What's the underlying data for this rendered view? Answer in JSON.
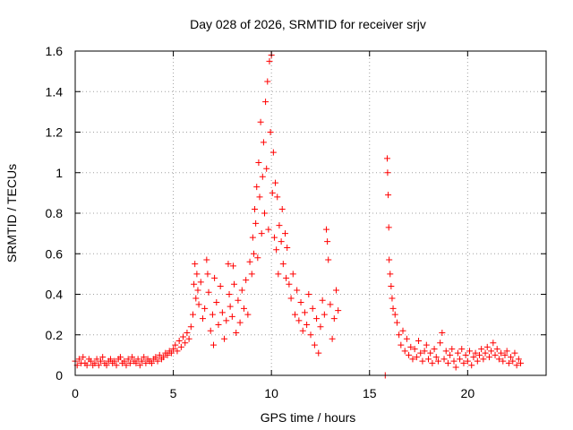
{
  "chart_data": {
    "type": "scatter",
    "title": "Day 028 of 2026, SRMTID for receiver srjv",
    "xlabel": "GPS time / hours",
    "ylabel": "SRMTID / TECUs",
    "xlim": [
      0,
      24
    ],
    "ylim": [
      0,
      1.6
    ],
    "xticks": [
      0,
      5,
      10,
      15,
      20
    ],
    "xtick_labels": [
      "0",
      "5",
      "10",
      "15",
      "20"
    ],
    "yticks": [
      0,
      0.2,
      0.4,
      0.6,
      0.8,
      1.0,
      1.2,
      1.4,
      1.6
    ],
    "ytick_labels": [
      "0",
      "0.2",
      "0.4",
      "0.6",
      "0.8",
      "1",
      "1.2",
      "1.4",
      "1.6"
    ],
    "grid": true,
    "marker": "plus",
    "color": "#ff0000",
    "series": [
      {
        "name": "srjv",
        "points": [
          [
            0.0,
            0.07
          ],
          [
            0.1,
            0.05
          ],
          [
            0.2,
            0.08
          ],
          [
            0.3,
            0.06
          ],
          [
            0.4,
            0.09
          ],
          [
            0.5,
            0.06
          ],
          [
            0.6,
            0.05
          ],
          [
            0.7,
            0.08
          ],
          [
            0.8,
            0.07
          ],
          [
            0.9,
            0.05
          ],
          [
            1.0,
            0.06
          ],
          [
            1.1,
            0.08
          ],
          [
            1.2,
            0.05
          ],
          [
            1.3,
            0.07
          ],
          [
            1.4,
            0.09
          ],
          [
            1.5,
            0.06
          ],
          [
            1.6,
            0.05
          ],
          [
            1.7,
            0.07
          ],
          [
            1.8,
            0.08
          ],
          [
            1.9,
            0.06
          ],
          [
            2.0,
            0.07
          ],
          [
            2.1,
            0.05
          ],
          [
            2.2,
            0.08
          ],
          [
            2.3,
            0.09
          ],
          [
            2.4,
            0.06
          ],
          [
            2.5,
            0.07
          ],
          [
            2.6,
            0.05
          ],
          [
            2.7,
            0.08
          ],
          [
            2.8,
            0.06
          ],
          [
            2.9,
            0.09
          ],
          [
            3.0,
            0.07
          ],
          [
            3.1,
            0.06
          ],
          [
            3.2,
            0.08
          ],
          [
            3.3,
            0.05
          ],
          [
            3.4,
            0.07
          ],
          [
            3.5,
            0.09
          ],
          [
            3.6,
            0.06
          ],
          [
            3.7,
            0.08
          ],
          [
            3.8,
            0.07
          ],
          [
            3.9,
            0.06
          ],
          [
            4.0,
            0.08
          ],
          [
            4.1,
            0.09
          ],
          [
            4.2,
            0.07
          ],
          [
            4.3,
            0.1
          ],
          [
            4.4,
            0.08
          ],
          [
            4.5,
            0.09
          ],
          [
            4.6,
            0.11
          ],
          [
            4.7,
            0.1
          ],
          [
            4.8,
            0.12
          ],
          [
            4.9,
            0.11
          ],
          [
            5.0,
            0.13
          ],
          [
            5.1,
            0.15
          ],
          [
            5.2,
            0.12
          ],
          [
            5.3,
            0.17
          ],
          [
            5.4,
            0.14
          ],
          [
            5.5,
            0.19
          ],
          [
            5.6,
            0.16
          ],
          [
            5.7,
            0.21
          ],
          [
            5.8,
            0.18
          ],
          [
            5.9,
            0.24
          ],
          [
            6.0,
            0.3
          ],
          [
            6.05,
            0.45
          ],
          [
            6.1,
            0.55
          ],
          [
            6.15,
            0.38
          ],
          [
            6.2,
            0.5
          ],
          [
            6.25,
            0.42
          ],
          [
            6.3,
            0.35
          ],
          [
            6.4,
            0.46
          ],
          [
            6.5,
            0.28
          ],
          [
            6.6,
            0.33
          ],
          [
            6.7,
            0.57
          ],
          [
            6.75,
            0.5
          ],
          [
            6.8,
            0.41
          ],
          [
            6.9,
            0.22
          ],
          [
            7.0,
            0.3
          ],
          [
            7.05,
            0.15
          ],
          [
            7.1,
            0.48
          ],
          [
            7.2,
            0.36
          ],
          [
            7.3,
            0.25
          ],
          [
            7.4,
            0.44
          ],
          [
            7.5,
            0.31
          ],
          [
            7.6,
            0.18
          ],
          [
            7.7,
            0.27
          ],
          [
            7.8,
            0.55
          ],
          [
            7.85,
            0.4
          ],
          [
            7.9,
            0.34
          ],
          [
            8.0,
            0.29
          ],
          [
            8.05,
            0.54
          ],
          [
            8.1,
            0.45
          ],
          [
            8.2,
            0.21
          ],
          [
            8.3,
            0.37
          ],
          [
            8.4,
            0.26
          ],
          [
            8.5,
            0.42
          ],
          [
            8.6,
            0.33
          ],
          [
            8.7,
            0.47
          ],
          [
            8.8,
            0.3
          ],
          [
            8.9,
            0.56
          ],
          [
            9.0,
            0.5
          ],
          [
            9.05,
            0.68
          ],
          [
            9.1,
            0.6
          ],
          [
            9.15,
            0.82
          ],
          [
            9.2,
            0.75
          ],
          [
            9.25,
            0.93
          ],
          [
            9.3,
            0.58
          ],
          [
            9.35,
            1.05
          ],
          [
            9.4,
            0.88
          ],
          [
            9.45,
            1.25
          ],
          [
            9.5,
            0.7
          ],
          [
            9.55,
            0.98
          ],
          [
            9.6,
            1.15
          ],
          [
            9.65,
            0.8
          ],
          [
            9.7,
            1.35
          ],
          [
            9.75,
            1.02
          ],
          [
            9.8,
            1.45
          ],
          [
            9.85,
            0.72
          ],
          [
            9.9,
            1.55
          ],
          [
            9.95,
            1.2
          ],
          [
            10.0,
            1.58
          ],
          [
            10.05,
            0.9
          ],
          [
            10.1,
            1.1
          ],
          [
            10.15,
            0.68
          ],
          [
            10.2,
            0.95
          ],
          [
            10.25,
            0.62
          ],
          [
            10.3,
            0.88
          ],
          [
            10.35,
            0.5
          ],
          [
            10.4,
            0.74
          ],
          [
            10.5,
            0.66
          ],
          [
            10.55,
            0.82
          ],
          [
            10.6,
            0.55
          ],
          [
            10.7,
            0.7
          ],
          [
            10.75,
            0.48
          ],
          [
            10.8,
            0.63
          ],
          [
            10.9,
            0.45
          ],
          [
            11.0,
            0.38
          ],
          [
            11.1,
            0.5
          ],
          [
            11.2,
            0.3
          ],
          [
            11.3,
            0.42
          ],
          [
            11.4,
            0.27
          ],
          [
            11.5,
            0.36
          ],
          [
            11.6,
            0.22
          ],
          [
            11.7,
            0.31
          ],
          [
            11.8,
            0.25
          ],
          [
            11.9,
            0.4
          ],
          [
            12.0,
            0.2
          ],
          [
            12.1,
            0.33
          ],
          [
            12.2,
            0.15
          ],
          [
            12.3,
            0.28
          ],
          [
            12.4,
            0.11
          ],
          [
            12.5,
            0.24
          ],
          [
            12.6,
            0.37
          ],
          [
            12.7,
            0.3
          ],
          [
            12.8,
            0.72
          ],
          [
            12.85,
            0.66
          ],
          [
            12.9,
            0.57
          ],
          [
            13.0,
            0.35
          ],
          [
            13.1,
            0.18
          ],
          [
            13.2,
            0.28
          ],
          [
            13.3,
            0.42
          ],
          [
            13.4,
            0.32
          ],
          [
            15.8,
            0.0
          ],
          [
            15.9,
            1.07
          ],
          [
            15.92,
            1.0
          ],
          [
            15.95,
            0.89
          ],
          [
            15.98,
            0.73
          ],
          [
            16.0,
            0.57
          ],
          [
            16.05,
            0.5
          ],
          [
            16.1,
            0.44
          ],
          [
            16.15,
            0.38
          ],
          [
            16.2,
            0.33
          ],
          [
            16.3,
            0.3
          ],
          [
            16.4,
            0.26
          ],
          [
            16.5,
            0.2
          ],
          [
            16.6,
            0.15
          ],
          [
            16.7,
            0.22
          ],
          [
            16.8,
            0.12
          ],
          [
            16.9,
            0.18
          ],
          [
            17.0,
            0.1
          ],
          [
            17.1,
            0.14
          ],
          [
            17.2,
            0.08
          ],
          [
            17.3,
            0.13
          ],
          [
            17.4,
            0.09
          ],
          [
            17.5,
            0.17
          ],
          [
            17.6,
            0.11
          ],
          [
            17.7,
            0.07
          ],
          [
            17.8,
            0.12
          ],
          [
            17.9,
            0.15
          ],
          [
            18.0,
            0.08
          ],
          [
            18.1,
            0.11
          ],
          [
            18.2,
            0.06
          ],
          [
            18.3,
            0.13
          ],
          [
            18.4,
            0.09
          ],
          [
            18.5,
            0.07
          ],
          [
            18.6,
            0.16
          ],
          [
            18.7,
            0.21
          ],
          [
            18.8,
            0.08
          ],
          [
            18.9,
            0.12
          ],
          [
            19.0,
            0.06
          ],
          [
            19.1,
            0.1
          ],
          [
            19.2,
            0.13
          ],
          [
            19.3,
            0.07
          ],
          [
            19.4,
            0.04
          ],
          [
            19.5,
            0.11
          ],
          [
            19.6,
            0.08
          ],
          [
            19.7,
            0.13
          ],
          [
            19.8,
            0.06
          ],
          [
            19.9,
            0.1
          ],
          [
            20.0,
            0.07
          ],
          [
            20.1,
            0.12
          ],
          [
            20.2,
            0.05
          ],
          [
            20.3,
            0.09
          ],
          [
            20.4,
            0.11
          ],
          [
            20.5,
            0.07
          ],
          [
            20.6,
            0.1
          ],
          [
            20.7,
            0.13
          ],
          [
            20.8,
            0.08
          ],
          [
            20.9,
            0.11
          ],
          [
            21.0,
            0.14
          ],
          [
            21.1,
            0.09
          ],
          [
            21.2,
            0.12
          ],
          [
            21.3,
            0.16
          ],
          [
            21.4,
            0.1
          ],
          [
            21.5,
            0.13
          ],
          [
            21.6,
            0.08
          ],
          [
            21.7,
            0.11
          ],
          [
            21.8,
            0.07
          ],
          [
            21.9,
            0.1
          ],
          [
            22.0,
            0.12
          ],
          [
            22.1,
            0.06
          ],
          [
            22.2,
            0.09
          ],
          [
            22.3,
            0.07
          ],
          [
            22.4,
            0.11
          ],
          [
            22.5,
            0.05
          ],
          [
            22.6,
            0.08
          ],
          [
            22.7,
            0.06
          ]
        ]
      }
    ]
  }
}
